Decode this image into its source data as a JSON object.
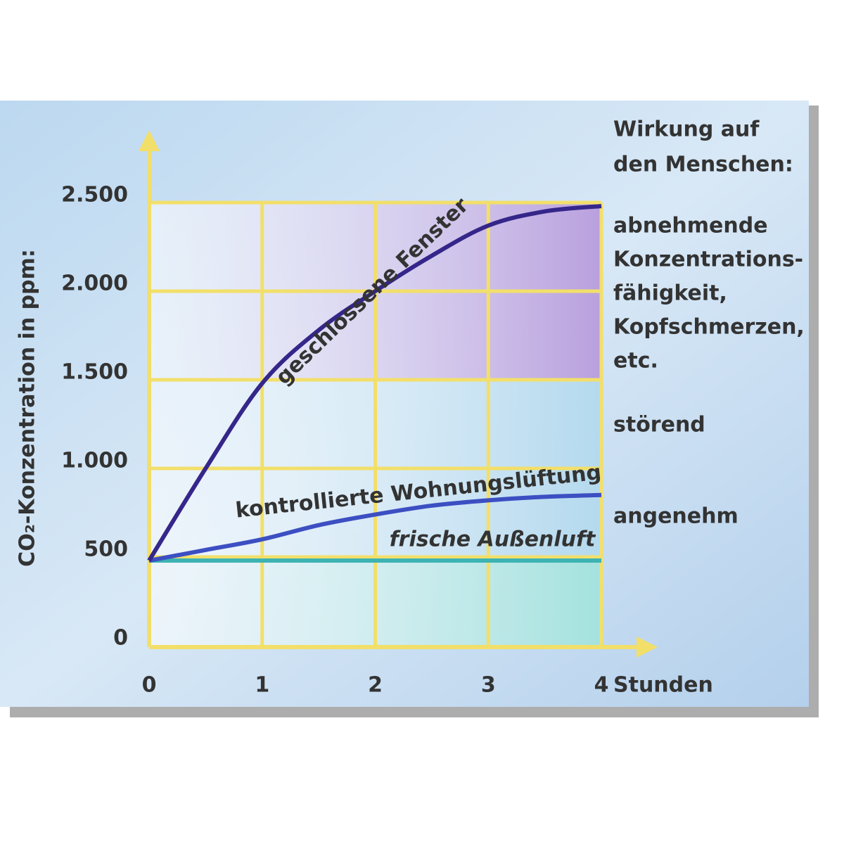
{
  "chart_data": {
    "type": "line",
    "y_label": "CO₂-Konzentration in ppm:",
    "x_label": "Stunden",
    "x": [
      0,
      0.5,
      1,
      1.5,
      2,
      2.5,
      3,
      3.5,
      4
    ],
    "xlim": [
      0,
      4
    ],
    "xticks": [
      0,
      1,
      2,
      3,
      4
    ],
    "ylim": [
      0,
      2500
    ],
    "yticks": [
      0,
      500,
      {
        "value": 1000,
        "label": "1.000"
      },
      {
        "value": 1500,
        "label": "1.500"
      },
      {
        "value": 2000,
        "label": "2.000"
      },
      {
        "value": 2500,
        "label": "2.500"
      }
    ],
    "grid": true,
    "series": [
      {
        "name": "geschlossene Fenster",
        "color": "#35268a",
        "values": [
          480,
          1000,
          1480,
          1780,
          2000,
          2200,
          2370,
          2450,
          2480
        ]
      },
      {
        "name": "kontrollierte Wohnungslüftung",
        "color": "#3c4fc2",
        "values": [
          480,
          540,
          600,
          680,
          740,
          790,
          820,
          840,
          850
        ]
      },
      {
        "name": "frische Außenluft",
        "color": "#3db3b3",
        "values": [
          480,
          480,
          480,
          480,
          480,
          480,
          480,
          480,
          480
        ]
      }
    ],
    "zones": [
      {
        "from": 1500,
        "to": 2500,
        "color": "#b9a0de"
      },
      {
        "from": 500,
        "to": 1500,
        "color": "#b4d9ee"
      },
      {
        "from": 0,
        "to": 500,
        "color": "#a4e2de"
      }
    ],
    "effect_title": [
      "Wirkung auf",
      "den Menschen:"
    ],
    "effects": [
      [
        "abnehmende",
        "Konzentrations-",
        "fähigkeit,",
        "Kopfschmerzen,",
        "etc."
      ],
      [
        "störend"
      ],
      [
        "angenehm"
      ]
    ]
  }
}
